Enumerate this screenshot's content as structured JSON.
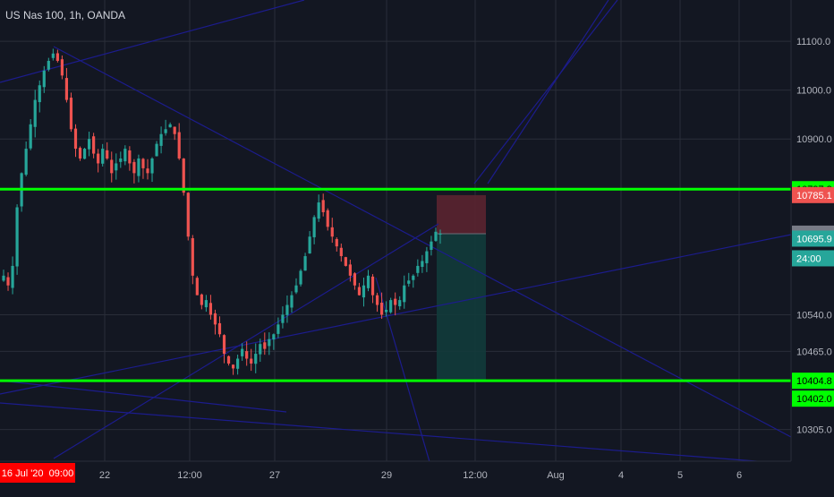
{
  "title": "US Nas 100, 1h, OANDA",
  "colors": {
    "background": "#131722",
    "grid": "#2a2e39",
    "candle_up": "#26a69a",
    "candle_down": "#ef5350",
    "level_line": "#00ff00",
    "trend_line": "#1c1c8c",
    "stop_zone": "#5b2430",
    "target_zone": "#123b3b",
    "last_price_tag": "#787b86"
  },
  "chart_data": {
    "type": "candlestick",
    "symbol": "US Nas 100",
    "timeframe": "1h",
    "source": "OANDA",
    "y_ticks": [
      11100,
      11000,
      10900,
      10540,
      10465,
      10305
    ],
    "x_ticks": [
      "16 Jul '20  09:00",
      "22",
      "12:00",
      "27",
      "29",
      "12:00",
      "Aug",
      "4",
      "5",
      "6"
    ],
    "ylim": [
      10240,
      11170
    ],
    "horizontal_levels": [
      10797.2,
      10404.8
    ],
    "price_tags": [
      {
        "label": "10797.2",
        "value": 10797.2,
        "kind": "level"
      },
      {
        "label": "10785.1",
        "value": 10785.1,
        "kind": "stop"
      },
      {
        "label": "10706.1",
        "value": 10706.1,
        "kind": "last"
      },
      {
        "label": "10695.9",
        "value": 10695.9,
        "kind": "entry"
      },
      {
        "label": "24:00",
        "value": 10600,
        "kind": "countdown"
      },
      {
        "label": "10404.8",
        "value": 10404.8,
        "kind": "level"
      },
      {
        "label": "10402.0",
        "value": 10402.0,
        "kind": "target"
      }
    ],
    "position": {
      "entry": 10706,
      "stop": 10785,
      "target": 10404
    },
    "close_path": [
      10620,
      10600,
      10640,
      10760,
      10830,
      10880,
      10930,
      10980,
      11010,
      11040,
      11060,
      11075,
      11060,
      11030,
      10980,
      10920,
      10880,
      10860,
      10880,
      10900,
      10870,
      10850,
      10880,
      10860,
      10830,
      10850,
      10860,
      10880,
      10850,
      10830,
      10860,
      10840,
      10830,
      10860,
      10890,
      10910,
      10920,
      10930,
      10910,
      10860,
      10790,
      10700,
      10620,
      10580,
      10560,
      10570,
      10540,
      10520,
      10500,
      10460,
      10440,
      10430,
      10450,
      10470,
      10450,
      10440,
      10460,
      10480,
      10470,
      10490,
      10500,
      10520,
      10540,
      10560,
      10580,
      10600,
      10630,
      10660,
      10700,
      10740,
      10770,
      10750,
      10720,
      10700,
      10680,
      10660,
      10640,
      10620,
      10600,
      10580,
      10600,
      10620,
      10580,
      10560,
      10540,
      10550,
      10570,
      10560,
      10570,
      10600,
      10610,
      10620,
      10640,
      10650,
      10670,
      10690,
      10710,
      10706
    ]
  }
}
